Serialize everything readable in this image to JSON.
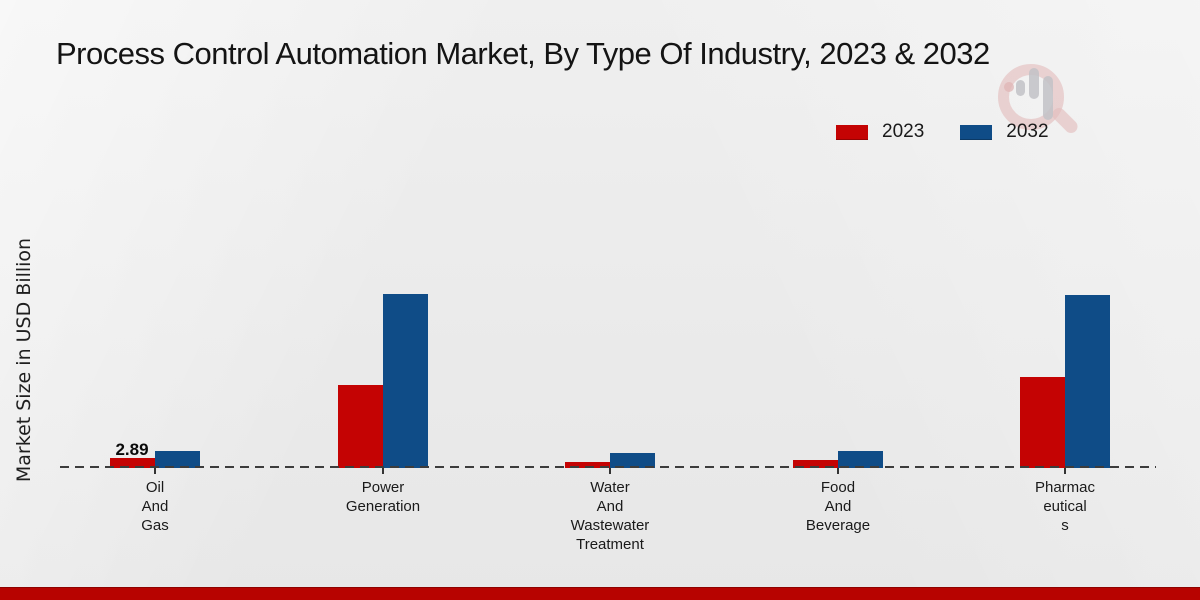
{
  "title": "Process Control Automation Market, By Type Of Industry, 2023 & 2032",
  "y_axis_label": "Market Size in USD Billion",
  "legend": {
    "items": [
      {
        "label": "2023",
        "color": "#c40303"
      },
      {
        "label": "2032",
        "color": "#0f4c87"
      }
    ]
  },
  "watermark": "market-research-future-logo",
  "footer": {
    "bar_color": "#b70300"
  },
  "chart_data": {
    "type": "bar",
    "title": "Process Control Automation Market, By Type Of Industry, 2023 & 2032",
    "xlabel": "",
    "ylabel": "Market Size in USD Billion",
    "unit": "USD Billion",
    "legend_position": "top-right",
    "grid": false,
    "baseline_style": "dashed",
    "categories": [
      "Oil And Gas",
      "Power Generation",
      "Water And Wastewater Treatment",
      "Food And Beverage",
      "Pharmaceuticals"
    ],
    "categories_wrapped": [
      "Oil\nAnd\nGas",
      "Power\nGeneration",
      "Water\nAnd\nWastewater\nTreatment",
      "Food\nAnd\nBeverage",
      "Pharmac\neutical\ns"
    ],
    "series": [
      {
        "name": "2023",
        "color": "#c40303",
        "values": [
          2.89,
          24.0,
          1.8,
          2.3,
          26.3
        ]
      },
      {
        "name": "2032",
        "color": "#0f4c87",
        "values": [
          4.9,
          50.3,
          4.4,
          4.9,
          50.0
        ]
      }
    ],
    "annotations": [
      {
        "category": "Oil And Gas",
        "series": "2023",
        "text": "2.89"
      }
    ]
  }
}
